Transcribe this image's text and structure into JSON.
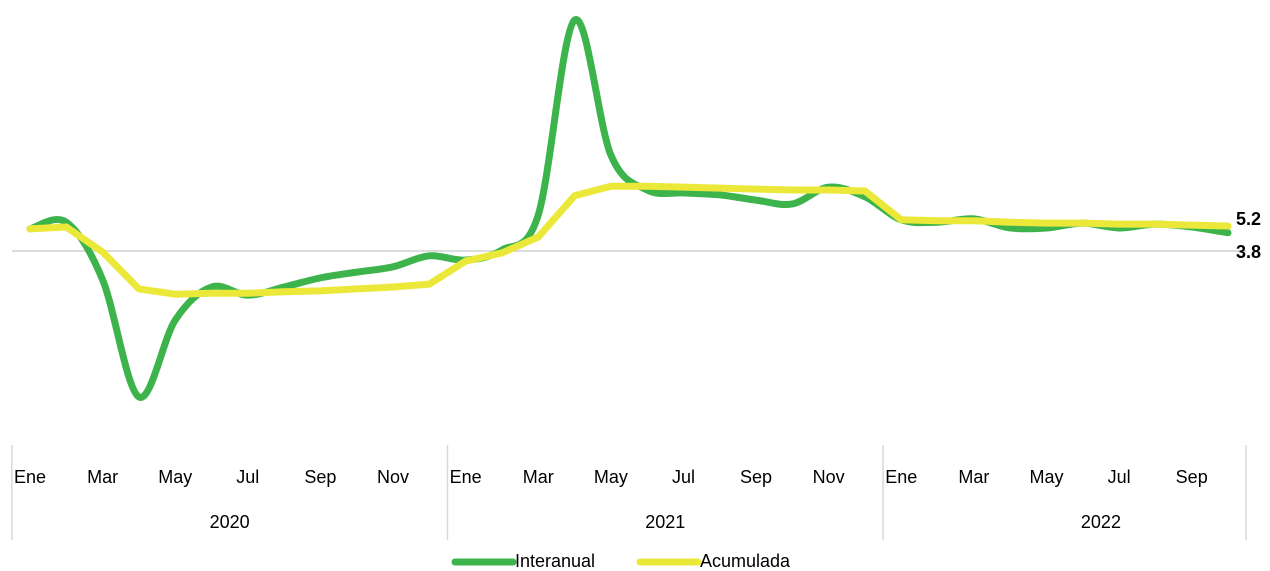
{
  "chart_data": {
    "type": "line",
    "categories": [
      "Ene",
      null,
      "Mar",
      null,
      "May",
      null,
      "Jul",
      null,
      "Sep",
      null,
      "Nov",
      null,
      "Ene",
      null,
      "Mar",
      null,
      "May",
      null,
      "Jul",
      null,
      "Sep",
      null,
      "Nov",
      null,
      "Ene",
      null,
      "Mar",
      null,
      "May",
      null,
      "Jul",
      null,
      "Sep",
      null
    ],
    "years": [
      "2020",
      "2021",
      "2022"
    ],
    "series": [
      {
        "name": "Interanual",
        "color": "#3cb44b",
        "smooth": true,
        "values": [
          4.6,
          6.0,
          -6.0,
          -30.4,
          -14.4,
          -7.5,
          -9.2,
          -7.5,
          -5.6,
          -4.4,
          -3.3,
          -1.0,
          -1.9,
          0.2,
          7.5,
          48.1,
          20.0,
          12.7,
          12.1,
          11.7,
          10.6,
          9.8,
          13.3,
          11.3,
          6.5,
          6.0,
          6.7,
          4.8,
          4.8,
          5.8,
          4.8,
          5.6,
          5.0,
          3.8
        ]
      },
      {
        "name": "Acumulada",
        "color": "#ece83a",
        "smooth": false,
        "values": [
          4.6,
          5.0,
          -0.2,
          -7.9,
          -9.0,
          -8.8,
          -8.8,
          -8.5,
          -8.3,
          -7.9,
          -7.5,
          -6.9,
          -2.1,
          -0.4,
          2.9,
          11.5,
          13.5,
          13.5,
          13.3,
          13.1,
          12.9,
          12.7,
          12.7,
          12.5,
          6.5,
          6.3,
          6.3,
          6.0,
          5.8,
          5.8,
          5.6,
          5.6,
          5.4,
          5.2
        ]
      }
    ],
    "ylim": [
      -35,
      50
    ]
  }
}
